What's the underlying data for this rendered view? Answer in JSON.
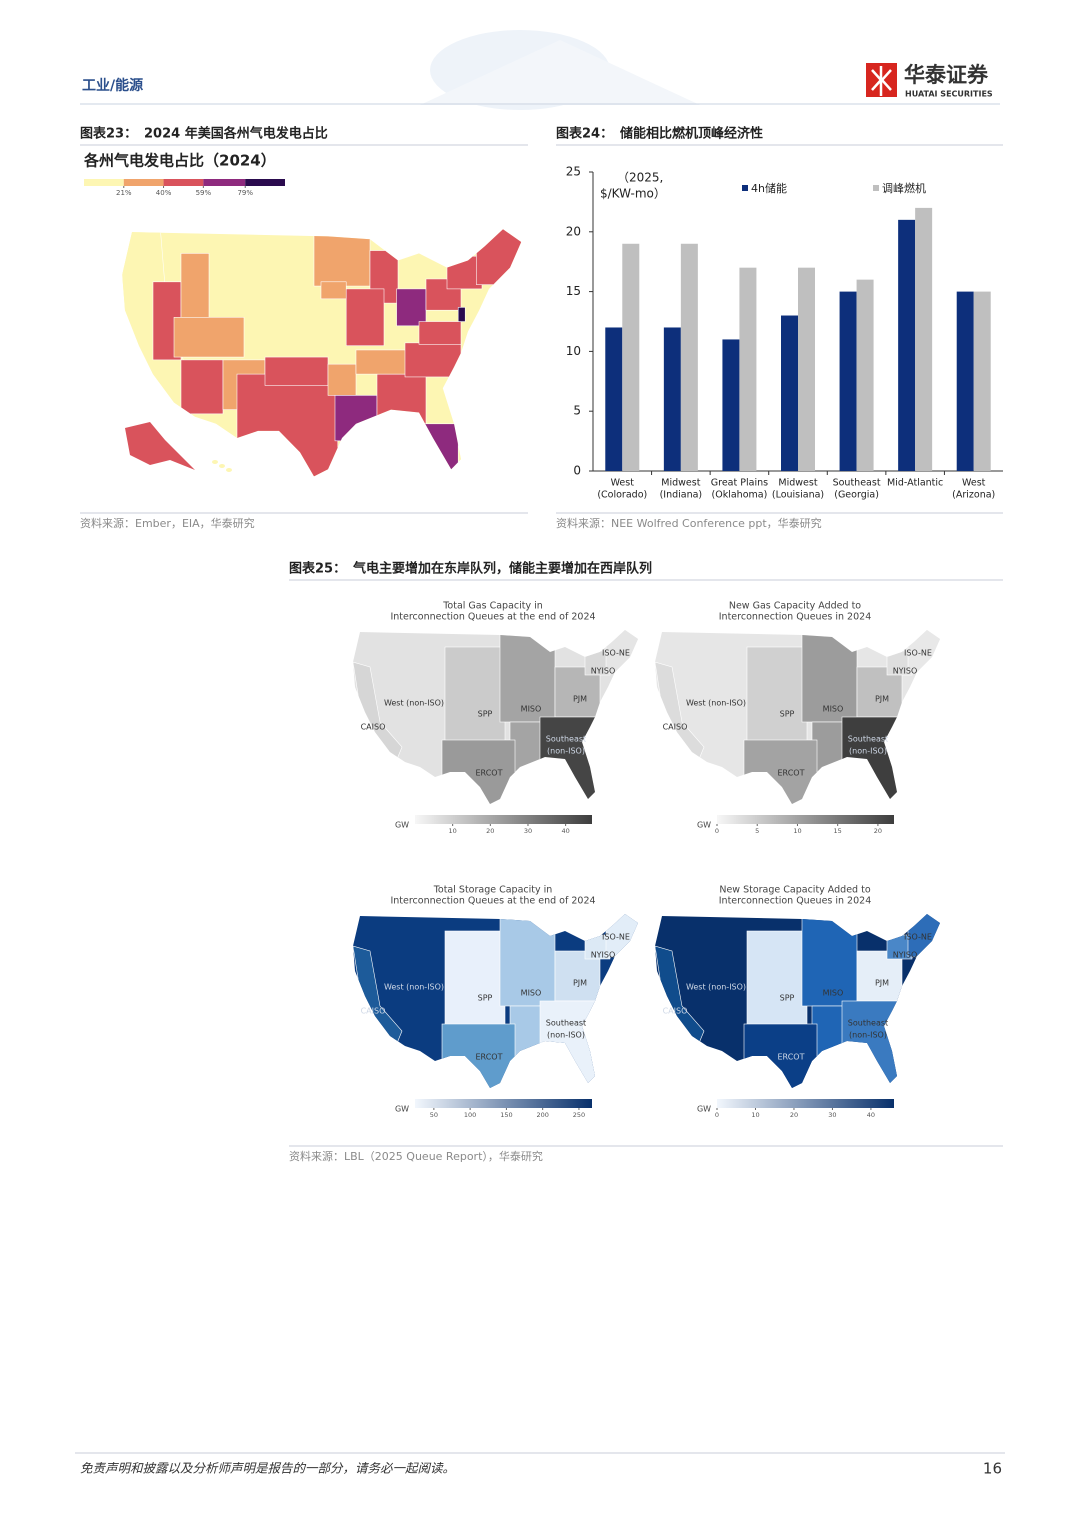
{
  "header": {
    "section": "工业/能源",
    "brand": "华泰证券",
    "brand_en": "HUATAI SECURITIES"
  },
  "figure23": {
    "label": "图表23：",
    "title": "2024 年美国各州气电发电占比",
    "map_title": "各州气电发电占比（2024）",
    "legend": {
      "colors": [
        "#fdf6b3",
        "#f0a46c",
        "#d9535c",
        "#8e2a7e",
        "#2a0b4e"
      ],
      "lim": [
        2,
        98
      ],
      "ticks": [
        {
          "value": 21,
          "label": "21%"
        },
        {
          "value": 40,
          "label": "40%"
        },
        {
          "value": 59,
          "label": "59%"
        },
        {
          "value": 79,
          "label": "79%"
        }
      ]
    },
    "source": "资料来源：Ember，EIA，华泰研究"
  },
  "figure24": {
    "label": "图表24：",
    "title": "储能相比燃机顶峰经济性",
    "chart": {
      "type": "bar",
      "y_label": [
        "（2025,",
        "$/KW-mo）"
      ],
      "categories": [
        [
          "West",
          "(Colorado)"
        ],
        [
          "Midwest",
          "(Indiana)"
        ],
        [
          "Great Plains",
          "(Oklahoma)"
        ],
        [
          "Midwest",
          "(Louisiana)"
        ],
        [
          "Southeast",
          "(Georgia)"
        ],
        [
          "Mid-Atlantic",
          null
        ],
        [
          "West",
          "(Arizona)"
        ]
      ],
      "series": [
        {
          "name": "4h储能",
          "color": "#0d2f7b",
          "values": [
            12,
            12,
            11,
            13,
            15,
            21,
            15
          ]
        },
        {
          "name": "调峰燃机",
          "color": "#bfbfbf",
          "values": [
            19,
            19,
            17,
            17,
            16,
            22,
            15
          ]
        }
      ],
      "ylim": [
        0,
        25
      ],
      "yticks": [
        0,
        5,
        10,
        15,
        20,
        25
      ],
      "grid": false
    },
    "source": "资料来源：NEE Wolfred Conference ppt，华泰研究"
  },
  "figure25": {
    "label": "图表25：",
    "title": "气电主要增加在东岸队列，储能主要增加在西岸队列",
    "region_labels": [
      "West (non-ISO)",
      "CAISO",
      "SPP",
      "MISO",
      "PJM",
      "ISO-NE",
      "NYISO",
      "Southeast",
      "(non-ISO)",
      "ERCOT"
    ],
    "maps": [
      {
        "title": [
          "Total Gas Capacity in",
          "Interconnection Queues at the end of 2024"
        ],
        "colorbar": {
          "unit": "GW",
          "colors": [
            "#f7f7f7",
            "#3d3d3d"
          ],
          "lim": [
            0,
            47
          ],
          "ticks": [
            10,
            20,
            30,
            40
          ]
        }
      },
      {
        "title": [
          "New Gas Capacity Added to",
          "Interconnection Queues in 2024"
        ],
        "colorbar": {
          "unit": "GW",
          "colors": [
            "#f7f7f7",
            "#3d3d3d"
          ],
          "lim": [
            0,
            22
          ],
          "ticks": [
            0,
            5,
            10,
            15,
            20
          ]
        }
      },
      {
        "title": [
          "Total Storage Capacity in",
          "Interconnection Queues at the end of 2024"
        ],
        "colorbar": {
          "unit": "GW",
          "colors": [
            "#f2f7fd",
            "#08306b"
          ],
          "lim": [
            24,
            268
          ],
          "ticks": [
            50,
            100,
            150,
            200,
            250
          ]
        }
      },
      {
        "title": [
          "New Storage Capacity Added to",
          "Interconnection Queues in 2024"
        ],
        "colorbar": {
          "unit": "GW",
          "colors": [
            "#f2f7fd",
            "#08306b"
          ],
          "lim": [
            0,
            46
          ],
          "ticks": [
            0,
            10,
            20,
            30,
            40
          ]
        }
      }
    ],
    "source": "资料来源：LBL（2025 Queue Report），华泰研究"
  },
  "footer": {
    "disclaimer": "免责声明和披露以及分析师声明是报告的一部分，请务必一起阅读。",
    "page": "16"
  }
}
